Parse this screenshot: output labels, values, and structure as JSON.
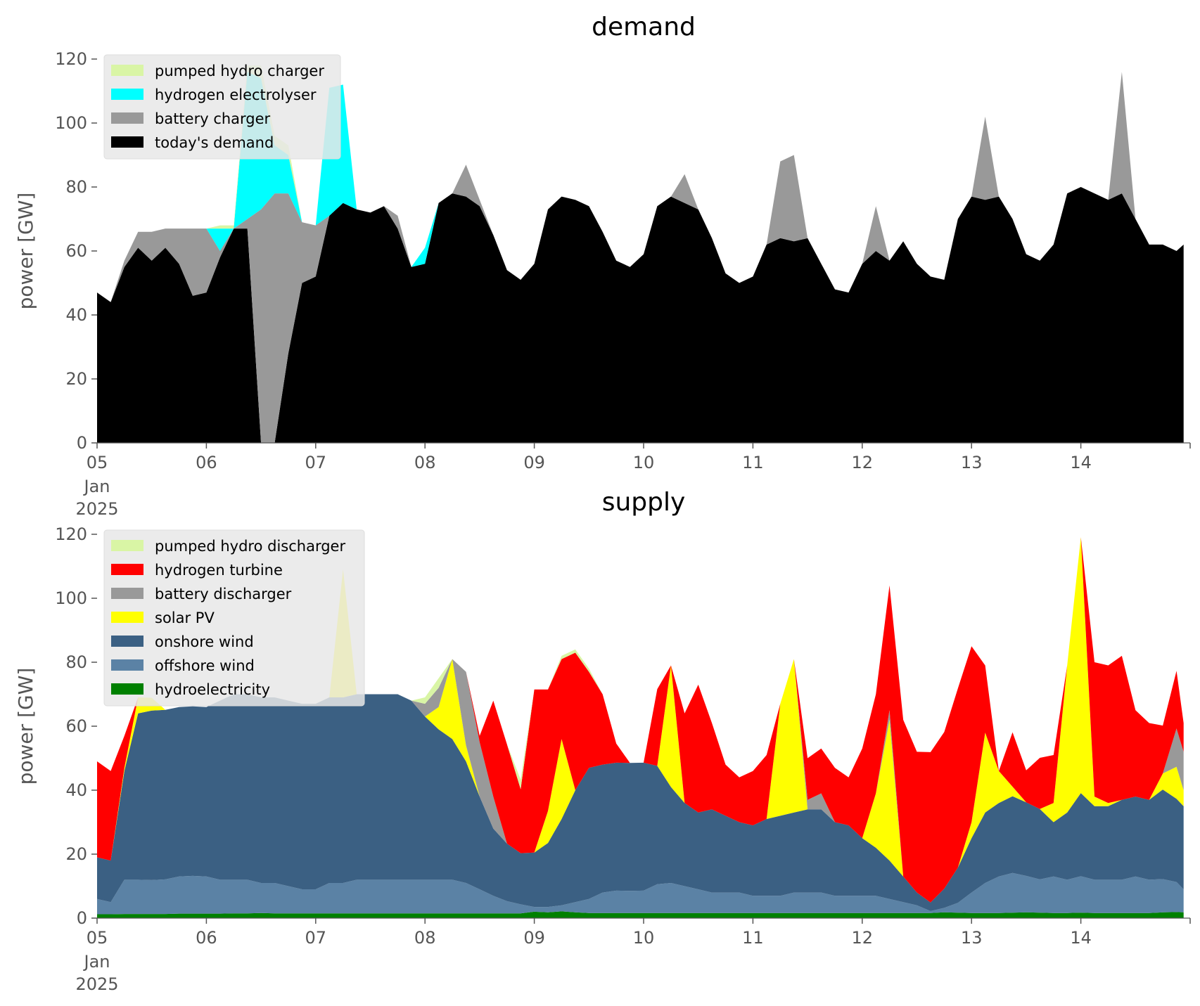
{
  "chart_data": [
    {
      "type": "area",
      "stacked": true,
      "title": "demand",
      "ylabel": "power [GW]",
      "ylim": [
        0,
        120
      ],
      "yticks": [
        0,
        20,
        40,
        60,
        80,
        100,
        120
      ],
      "xlim": [
        "2025-01-05",
        "2025-01-15"
      ],
      "xtick_labels": [
        "05",
        "06",
        "07",
        "08",
        "09",
        "10",
        "11",
        "12",
        "13",
        "14"
      ],
      "xtick_sublabels": [
        "Jan",
        "2025"
      ],
      "grid": false,
      "legend_position": "top-left",
      "x_days": [
        0,
        0.125,
        0.25,
        0.375,
        0.5,
        0.625,
        0.75,
        0.875,
        1,
        1.125,
        1.25,
        1.375,
        1.5,
        1.625,
        1.75,
        1.875,
        2,
        2.125,
        2.25,
        2.375,
        2.5,
        2.625,
        2.75,
        2.875,
        3,
        3.125,
        3.25,
        3.375,
        3.5,
        3.625,
        3.75,
        3.875,
        4,
        4.125,
        4.25,
        4.375,
        4.5,
        4.625,
        4.75,
        4.875,
        5,
        5.125,
        5.25,
        5.375,
        5.5,
        5.625,
        5.75,
        5.875,
        6,
        6.125,
        6.25,
        6.375,
        6.5,
        6.625,
        6.75,
        6.875,
        7,
        7.125,
        7.25,
        7.375,
        7.5,
        7.625,
        7.75,
        7.875,
        8,
        8.125,
        8.25,
        8.375,
        8.5,
        8.625,
        8.75,
        8.875,
        9,
        9.125,
        9.25,
        9.375,
        9.5,
        9.625,
        9.75,
        9.875,
        9.94
      ],
      "series": [
        {
          "name": "today's demand",
          "color": "#000000",
          "values": [
            47,
            44,
            55,
            61,
            57,
            61,
            56,
            46,
            47,
            58,
            67,
            67,
            0,
            0,
            28,
            50,
            52,
            71,
            75,
            73,
            72,
            74,
            67,
            55,
            56,
            75,
            78,
            77,
            74,
            65,
            54,
            51,
            56,
            73,
            77,
            76,
            74,
            66,
            57,
            55,
            59,
            74,
            77,
            75,
            73,
            64,
            53,
            50,
            52,
            62,
            64,
            63,
            64,
            56,
            48,
            47,
            56,
            60,
            57,
            63,
            56,
            52,
            51,
            70,
            77,
            76,
            77,
            70,
            59,
            57,
            62,
            78,
            80,
            78,
            76,
            78,
            70,
            62,
            62,
            60,
            62
          ]
        },
        {
          "name": "battery charger",
          "color": "#999999",
          "values": [
            0,
            0,
            2,
            5,
            9,
            6,
            11,
            21,
            20,
            2,
            0,
            3,
            73,
            78,
            50,
            19,
            16,
            0,
            0,
            0,
            0,
            0,
            4,
            0,
            0,
            0,
            0,
            10,
            2,
            0,
            0,
            0,
            0,
            0,
            0,
            0,
            0,
            0,
            0,
            0,
            0,
            0,
            0,
            9,
            0,
            0,
            0,
            0,
            0,
            0,
            24,
            27,
            0,
            0,
            0,
            0,
            0,
            14,
            0,
            0,
            0,
            0,
            0,
            0,
            0,
            26,
            0,
            0,
            0,
            0,
            0,
            0,
            0,
            0,
            0,
            38,
            0,
            0,
            0,
            0,
            0
          ]
        },
        {
          "name": "hydrogen electrolyser",
          "color": "#00ffff",
          "values": [
            0,
            0,
            0,
            0,
            0,
            0,
            0,
            0,
            0,
            7,
            0,
            46,
            41,
            15,
            12,
            0,
            0,
            40,
            37,
            0,
            0,
            0,
            0,
            0,
            5,
            0,
            0,
            0,
            0,
            0,
            0,
            0,
            0,
            0,
            0,
            0,
            0,
            0,
            0,
            0,
            0,
            0,
            0,
            0,
            0,
            0,
            0,
            0,
            0,
            0,
            0,
            0,
            0,
            0,
            0,
            0,
            0,
            0,
            0,
            0,
            0,
            0,
            0,
            0,
            0,
            0,
            0,
            0,
            0,
            0,
            0,
            0,
            0,
            0,
            0,
            0,
            0,
            0,
            0,
            0,
            0
          ]
        },
        {
          "name": "pumped hydro charger",
          "color": "#d9f5a5",
          "values": [
            0,
            0,
            0,
            0,
            0,
            0,
            0,
            0,
            0,
            1,
            1,
            2,
            4,
            3,
            3,
            0,
            0,
            0,
            0,
            0,
            0,
            0,
            0,
            0,
            0,
            0,
            0,
            0,
            0,
            0,
            0,
            0,
            0,
            0,
            0,
            0,
            0,
            0,
            0,
            0,
            0,
            0,
            0,
            0,
            0,
            0,
            0,
            0,
            0,
            0,
            0,
            0,
            0,
            0,
            0,
            0,
            0,
            0,
            0,
            0,
            0,
            0,
            0,
            0,
            0,
            0,
            0,
            0,
            0,
            0,
            0,
            0,
            0,
            0,
            0,
            0,
            0,
            0,
            0,
            0,
            0
          ]
        }
      ],
      "legend_order": [
        "pumped hydro charger",
        "hydrogen electrolyser",
        "battery charger",
        "today's demand"
      ]
    },
    {
      "type": "area",
      "stacked": true,
      "title": "supply",
      "ylabel": "power [GW]",
      "ylim": [
        0,
        120
      ],
      "yticks": [
        0,
        20,
        40,
        60,
        80,
        100,
        120
      ],
      "xlim": [
        "2025-01-05",
        "2025-01-15"
      ],
      "xtick_labels": [
        "05",
        "06",
        "07",
        "08",
        "09",
        "10",
        "11",
        "12",
        "13",
        "14"
      ],
      "xtick_sublabels": [
        "Jan",
        "2025"
      ],
      "grid": false,
      "legend_position": "top-left",
      "x_days": [
        0,
        0.125,
        0.25,
        0.375,
        0.5,
        0.625,
        0.75,
        0.875,
        1,
        1.125,
        1.25,
        1.375,
        1.5,
        1.625,
        1.75,
        1.875,
        2,
        2.125,
        2.25,
        2.375,
        2.5,
        2.625,
        2.75,
        2.875,
        3,
        3.125,
        3.25,
        3.375,
        3.5,
        3.625,
        3.75,
        3.875,
        4,
        4.125,
        4.25,
        4.375,
        4.5,
        4.625,
        4.75,
        4.875,
        5,
        5.125,
        5.25,
        5.375,
        5.5,
        5.625,
        5.75,
        5.875,
        6,
        6.125,
        6.25,
        6.375,
        6.5,
        6.625,
        6.75,
        6.875,
        7,
        7.125,
        7.25,
        7.375,
        7.5,
        7.625,
        7.75,
        7.875,
        8,
        8.125,
        8.25,
        8.375,
        8.5,
        8.625,
        8.75,
        8.875,
        9,
        9.125,
        9.25,
        9.375,
        9.5,
        9.625,
        9.75,
        9.875,
        9.94
      ],
      "series": [
        {
          "name": "hydroelectricity",
          "color": "#008000",
          "values": [
            1.2,
            1.2,
            1.3,
            1.3,
            1.3,
            1.3,
            1.4,
            1.4,
            1.4,
            1.4,
            1.5,
            1.5,
            1.6,
            1.5,
            1.5,
            1.5,
            1.5,
            1.5,
            1.5,
            1.5,
            1.5,
            1.5,
            1.5,
            1.5,
            1.5,
            1.5,
            1.5,
            1.5,
            1.5,
            1.5,
            1.5,
            1.5,
            2,
            1.8,
            2.1,
            1.8,
            1.6,
            1.6,
            1.6,
            1.6,
            1.6,
            1.6,
            1.6,
            1.6,
            1.6,
            1.6,
            1.6,
            1.6,
            1.6,
            1.6,
            1.6,
            1.6,
            1.6,
            1.6,
            1.6,
            1.6,
            1.6,
            1.6,
            1.6,
            1.6,
            1.6,
            1.6,
            1.8,
            1.7,
            1.6,
            1.6,
            1.6,
            1.7,
            1.8,
            1.7,
            1.6,
            1.6,
            1.7,
            1.6,
            1.6,
            1.6,
            1.6,
            1.6,
            1.8,
            1.9,
            1.8
          ]
        },
        {
          "name": "offshore wind",
          "color": "#5b82a5",
          "values": [
            4.8,
            3.8,
            10.7,
            10.7,
            10.6,
            10.8,
            11.6,
            11.8,
            11.6,
            10.6,
            10.5,
            10.5,
            9.4,
            9.5,
            8.5,
            7.5,
            7.5,
            9.5,
            9.5,
            10.5,
            10.5,
            10.5,
            10.5,
            10.5,
            10.5,
            10.5,
            10.5,
            9.5,
            7.5,
            5.5,
            3.8,
            2.8,
            1.5,
            1.7,
            1.9,
            3.2,
            4.4,
            6.4,
            7,
            6.9,
            7,
            9,
            9.4,
            8.4,
            7.4,
            6.4,
            6.4,
            6.4,
            5.4,
            5.4,
            5.4,
            6.4,
            6.4,
            6.4,
            5.4,
            5.4,
            5.4,
            5.4,
            4.4,
            3.4,
            2.4,
            0.6,
            1.4,
            3.1,
            6.4,
            9.4,
            11.4,
            12.4,
            11.4,
            10.4,
            11.4,
            10.4,
            11.4,
            10.4,
            10.4,
            10.4,
            11.4,
            10.4,
            10.4,
            9.4,
            7.2
          ]
        },
        {
          "name": "onshore wind",
          "color": "#3b6083",
          "values": [
            13,
            13,
            34,
            52,
            53,
            53,
            53,
            53,
            53,
            56,
            58,
            58,
            58,
            58,
            58,
            58,
            58,
            58,
            58,
            58,
            58,
            58,
            58,
            56,
            51,
            47,
            44,
            38,
            29,
            21,
            18,
            16,
            17,
            20,
            27,
            35,
            41,
            40,
            40,
            40,
            40,
            37,
            30,
            26,
            24,
            26,
            24,
            22,
            22,
            24,
            25,
            25,
            26,
            26,
            23,
            22,
            18,
            15,
            12,
            8,
            4,
            2.7,
            6,
            11,
            17,
            22,
            23,
            24,
            23,
            22,
            17,
            21,
            26,
            23,
            23,
            25,
            25,
            25,
            28,
            26,
            26
          ]
        },
        {
          "name": "solar PV",
          "color": "#ffff00",
          "values": [
            0,
            0,
            1,
            5,
            4,
            0,
            0,
            0,
            0,
            0,
            0,
            0,
            0,
            0,
            0,
            0,
            0,
            0,
            40,
            0,
            0,
            0,
            0,
            0,
            0,
            7,
            25,
            5,
            0,
            0,
            0,
            0,
            0,
            10,
            25,
            0,
            0,
            0,
            0,
            0,
            0,
            0,
            38,
            0,
            0,
            0,
            0,
            0,
            0,
            0,
            35,
            48,
            0,
            0,
            0,
            0,
            0,
            17,
            44,
            0,
            0,
            0,
            0,
            0,
            5,
            25,
            10,
            3,
            0,
            0,
            6,
            46,
            80,
            3,
            1,
            0,
            0,
            0,
            5,
            10,
            5
          ]
        },
        {
          "name": "battery discharger",
          "color": "#999999",
          "values": [
            0,
            0,
            0,
            0,
            0,
            0,
            0,
            0,
            0,
            0,
            0,
            0,
            0,
            0,
            0,
            0,
            0,
            0,
            0,
            0,
            0,
            0,
            0,
            0,
            4,
            6,
            0,
            23,
            17,
            10,
            0,
            0,
            0,
            0,
            0,
            0,
            0,
            0,
            0,
            0,
            0,
            0,
            0,
            0,
            0,
            0,
            0,
            0,
            0,
            0,
            0,
            0,
            3,
            5,
            0,
            0,
            0,
            0,
            3,
            0,
            0,
            0,
            0,
            0,
            0,
            0,
            0,
            0,
            0,
            0,
            0,
            0,
            0,
            0,
            0,
            0,
            0,
            0,
            0,
            12,
            12
          ]
        },
        {
          "name": "hydrogen turbine",
          "color": "#ff0000",
          "values": [
            30,
            28,
            10,
            0,
            0,
            0,
            0,
            0,
            0,
            0,
            0,
            0,
            0,
            0,
            0,
            0,
            0,
            0,
            0,
            0,
            0,
            0,
            0,
            0,
            0,
            0,
            0,
            0,
            2,
            30,
            31,
            20,
            51,
            38,
            25,
            43,
            30,
            22,
            6,
            0,
            0,
            24,
            0,
            28,
            40,
            27,
            16,
            14,
            17,
            20,
            0,
            0,
            13,
            14,
            17,
            15,
            28,
            31,
            39,
            49,
            44,
            47,
            49,
            56,
            55,
            21,
            0,
            17,
            10,
            16,
            15,
            0,
            0,
            42,
            43,
            45,
            27,
            24,
            15,
            18,
            9
          ]
        },
        {
          "name": "pumped hydro discharger",
          "color": "#d9f5a5",
          "values": [
            0,
            0,
            0,
            0,
            0,
            0,
            0,
            0,
            0,
            0,
            0,
            0,
            0,
            0,
            0,
            0,
            0,
            0,
            0,
            0,
            0,
            0,
            0,
            0,
            2,
            3,
            0,
            0,
            0,
            0,
            0,
            3,
            0,
            0,
            1,
            1,
            1,
            0,
            0,
            0,
            0,
            0,
            0,
            0,
            0,
            0,
            0,
            0,
            0,
            0,
            0,
            0,
            0,
            0,
            0,
            0,
            0,
            0,
            0,
            0,
            0,
            0,
            0,
            0,
            0,
            0,
            0,
            0,
            0,
            0,
            0,
            0,
            0,
            0,
            0,
            0,
            0,
            0,
            0,
            0,
            0
          ]
        }
      ],
      "legend_order": [
        "pumped hydro discharger",
        "hydrogen turbine",
        "battery discharger",
        "solar PV",
        "onshore wind",
        "offshore wind",
        "hydroelectricity"
      ]
    }
  ]
}
